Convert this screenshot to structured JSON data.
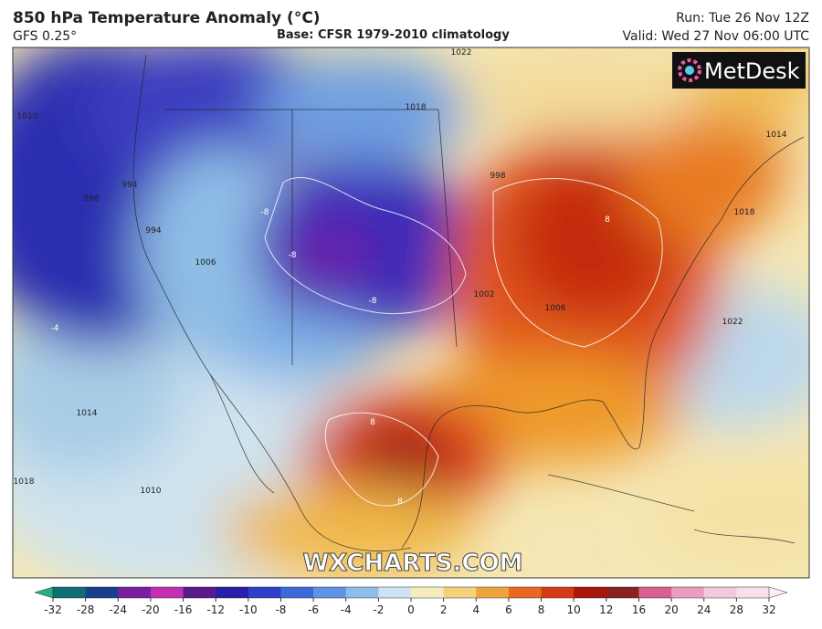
{
  "header": {
    "title": "850 hPa Temperature Anomaly (°C)",
    "model": "GFS 0.25°",
    "base": "Base: CFSR 1979-2010 climatology",
    "run": "Run: Tue 26 Nov 12Z",
    "valid": "Valid: Wed 27 Nov 06:00 UTC"
  },
  "logo": "MetDesk",
  "watermark": "WXCHARTS.COM",
  "contour_labels": [
    "1010",
    "1014",
    "1018",
    "1022",
    "1018",
    "1006",
    "994",
    "998",
    "1002",
    "1006",
    "998",
    "994",
    "1018",
    "1022",
    "1014",
    "1010",
    "-8",
    "-8",
    "-8",
    "-4",
    "8",
    "8",
    "8"
  ],
  "colorbar": {
    "ticks": [
      "-32",
      "-28",
      "-24",
      "-20",
      "-16",
      "-12",
      "-10",
      "-8",
      "-6",
      "-4",
      "-2",
      "0",
      "2",
      "4",
      "6",
      "8",
      "10",
      "12",
      "16",
      "20",
      "24",
      "28",
      "32"
    ]
  }
}
